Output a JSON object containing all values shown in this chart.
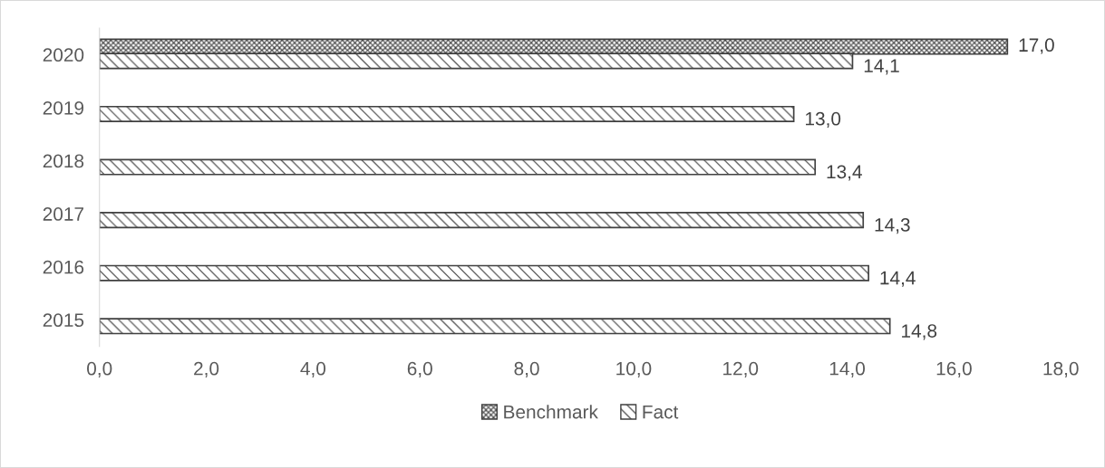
{
  "chart_data": {
    "type": "bar",
    "orientation": "horizontal",
    "categories": [
      "2020",
      "2019",
      "2018",
      "2017",
      "2016",
      "2015"
    ],
    "series": [
      {
        "name": "Benchmark",
        "color": "#404040",
        "values": [
          17.0,
          null,
          null,
          null,
          null,
          null
        ],
        "value_labels": [
          "17,0",
          null,
          null,
          null,
          null,
          null
        ]
      },
      {
        "name": "Fact",
        "color": "#404040",
        "values": [
          14.1,
          13.0,
          13.4,
          14.3,
          14.4,
          14.8
        ],
        "value_labels": [
          "14,1",
          "13,0",
          "13,4",
          "14,3",
          "14,4",
          "14,8"
        ]
      }
    ],
    "xlim": [
      0,
      18
    ],
    "xticks": [
      {
        "value": 0,
        "label": "0,0"
      },
      {
        "value": 2,
        "label": "2,0"
      },
      {
        "value": 4,
        "label": "4,0"
      },
      {
        "value": 6,
        "label": "6,0"
      },
      {
        "value": 8,
        "label": "8,0"
      },
      {
        "value": 10,
        "label": "10,0"
      },
      {
        "value": 12,
        "label": "12,0"
      },
      {
        "value": 14,
        "label": "14,0"
      },
      {
        "value": 16,
        "label": "16,0"
      },
      {
        "value": 18,
        "label": "18,0"
      }
    ],
    "grid": false,
    "legend": "bottom"
  }
}
